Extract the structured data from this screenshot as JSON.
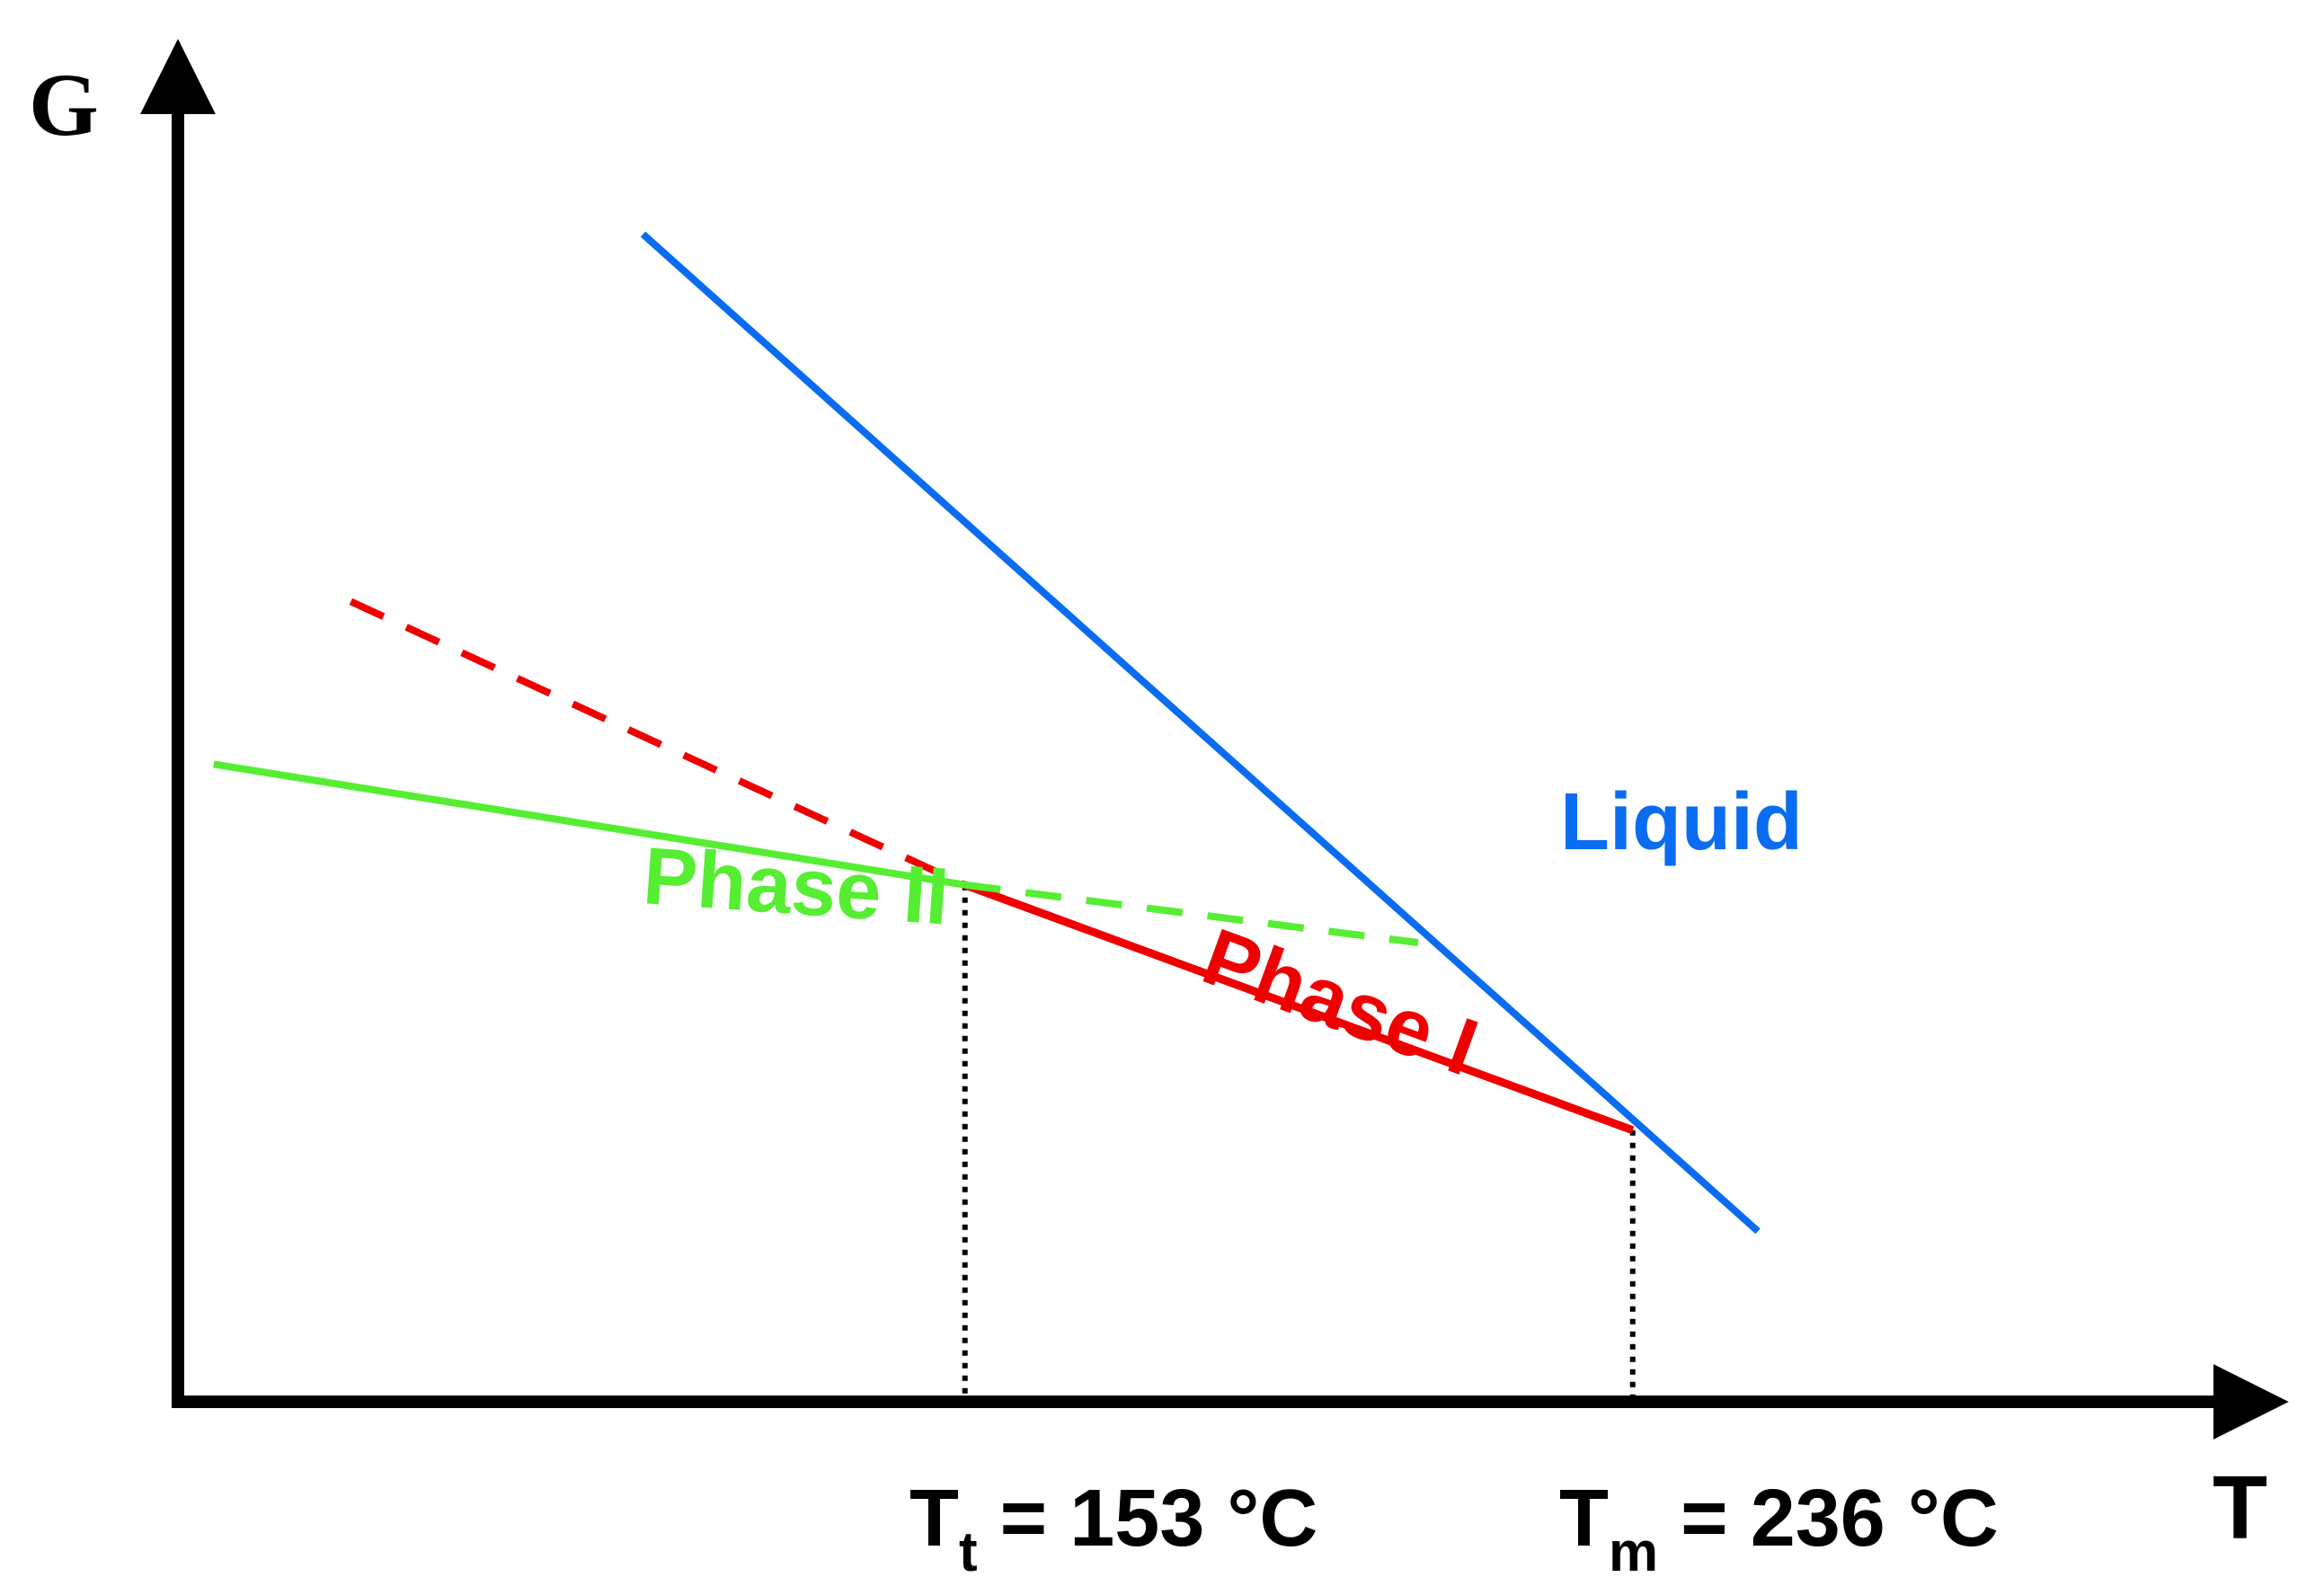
{
  "chart_data": {
    "type": "line",
    "title": "",
    "xlabel": "T",
    "ylabel": "G",
    "grid": false,
    "xlim": [
      0,
      350
    ],
    "ylim": [
      0,
      100
    ],
    "series": [
      {
        "name": "Liquid",
        "label": "Liquid",
        "color": "#0a6cf0",
        "style": "solid",
        "x": [
          78,
          265
        ],
        "y": [
          89,
          13
        ]
      },
      {
        "name": "Phase I (extrapolated)",
        "color": "#ee0000",
        "style": "dashed",
        "x": [
          29,
          132
        ],
        "y": [
          61,
          39.4
        ]
      },
      {
        "name": "Phase I",
        "label": "Phase I",
        "color": "#ee0000",
        "style": "solid",
        "x": [
          132,
          244
        ],
        "y": [
          39.4,
          20.7
        ]
      },
      {
        "name": "Phase II",
        "label": "Phase II",
        "color": "#55ee33",
        "style": "solid",
        "x": [
          6,
          132
        ],
        "y": [
          48.6,
          39.4
        ]
      },
      {
        "name": "Phase II (extrapolated)",
        "color": "#55ee33",
        "style": "dashed",
        "x": [
          132,
          208
        ],
        "y": [
          39.4,
          35.0
        ]
      }
    ],
    "markers": [
      {
        "name": "Tt",
        "x": 132,
        "y": 39.4,
        "label_main": "T",
        "label_sub": "t",
        "label_value": " = 153 °C"
      },
      {
        "name": "Tm",
        "x": 244,
        "y": 20.7,
        "label_main": "T",
        "label_sub": "m",
        "label_value": " = 236 °C"
      }
    ]
  },
  "colors": {
    "axis": "#000000",
    "liquid": "#0a6cf0",
    "phase_i": "#ee0000",
    "phase_ii": "#55ee33"
  }
}
